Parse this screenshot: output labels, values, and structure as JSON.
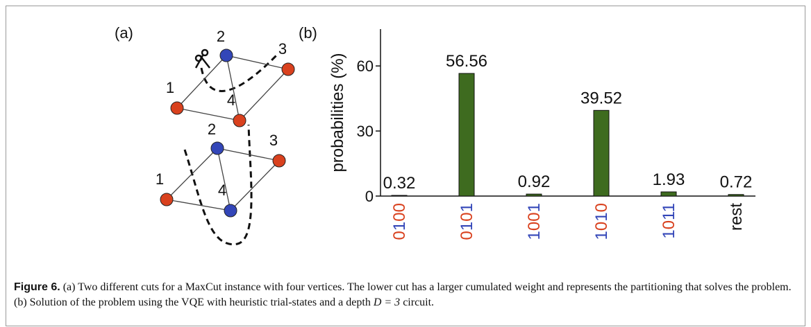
{
  "panel_a": {
    "label": "(a)",
    "graphs": [
      {
        "nodes": [
          {
            "label": "1",
            "color": "#d9411e"
          },
          {
            "label": "2",
            "color": "#3346b8"
          },
          {
            "label": "3",
            "color": "#d9411e"
          },
          {
            "label": "4",
            "color": "#d9411e"
          }
        ]
      },
      {
        "nodes": [
          {
            "label": "1",
            "color": "#d9411e"
          },
          {
            "label": "2",
            "color": "#3346b8"
          },
          {
            "label": "3",
            "color": "#d9411e"
          },
          {
            "label": "4",
            "color": "#3346b8"
          }
        ]
      }
    ]
  },
  "chart_data": {
    "type": "bar",
    "panel_label": "(b)",
    "y_label": "probabilities (%)",
    "categories": [
      "0100",
      "0101",
      "1001",
      "1010",
      "1011",
      "rest"
    ],
    "values": [
      0.32,
      56.56,
      0.92,
      39.52,
      1.93,
      0.72
    ],
    "color": "#3e6b1f",
    "digit_colors": {
      "0": "#d9411e",
      "1": "#3346b8"
    },
    "ylim": [
      0,
      77
    ],
    "yticks": [
      0,
      30,
      60
    ]
  },
  "caption": {
    "label": "Figure 6.",
    "text_before": "(a) Two different cuts for a MaxCut instance with four vertices. The lower cut has a larger cumulated weight and represents the partitioning that solves the problem. (b) Solution of the problem using the VQE with heuristic trial-states and a depth ",
    "math": "D = 3",
    "text_after": " circuit."
  }
}
